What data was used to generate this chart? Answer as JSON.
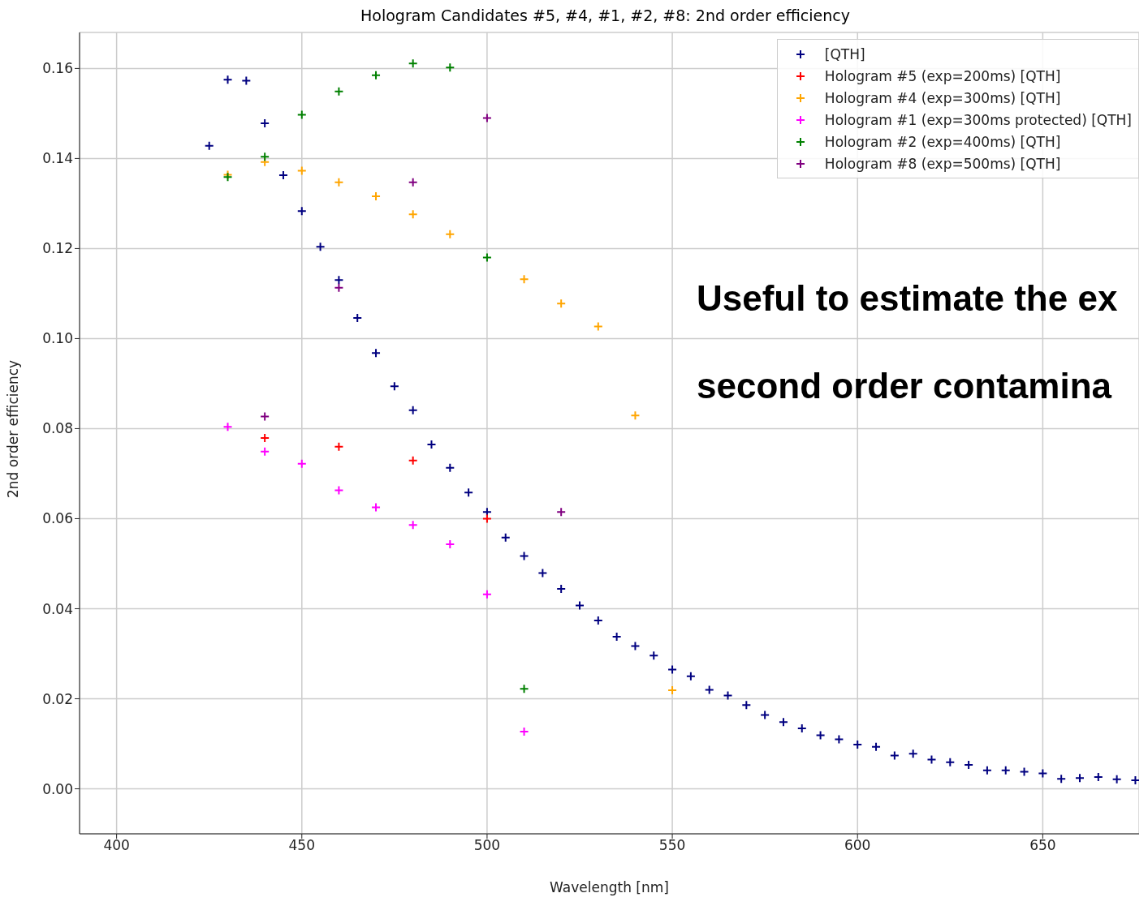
{
  "chart_data": {
    "type": "scatter",
    "title": "Hologram Candidates #5, #4, #1, #2, #8: 2nd order efficiency",
    "xlabel": "Wavelength [nm]",
    "ylabel": "2nd order efficiency",
    "xlim": [
      390,
      676
    ],
    "xticks": [
      400,
      450,
      500,
      550,
      600,
      650
    ],
    "ylim": [
      -0.01,
      0.168
    ],
    "yticks": [
      {
        "value": 0,
        "label": "0.00"
      },
      {
        "value": 0.02,
        "label": "0.02"
      },
      {
        "value": 0.04,
        "label": "0.04"
      },
      {
        "value": 0.06,
        "label": "0.06"
      },
      {
        "value": 0.08,
        "label": "0.08"
      },
      {
        "value": 0.1,
        "label": "0.10"
      },
      {
        "value": 0.12,
        "label": "0.12"
      },
      {
        "value": 0.14,
        "label": "0.14"
      },
      {
        "value": 0.16,
        "label": "0.16"
      }
    ],
    "grid": true,
    "legend": "top right",
    "marker": "cross",
    "annotations": [
      "Useful to estimate the ex",
      "second order contamina"
    ],
    "series": [
      {
        "name": "[QTH]",
        "color": "#000080",
        "x": [
          425,
          430,
          435,
          440,
          445,
          450,
          455,
          460,
          465,
          470,
          475,
          480,
          485,
          490,
          495,
          500,
          505,
          510,
          515,
          520,
          525,
          530,
          535,
          540,
          545,
          550,
          555,
          560,
          565,
          570,
          575,
          580,
          585,
          590,
          595,
          600,
          605,
          610,
          615,
          620,
          625,
          630,
          635,
          640,
          645,
          650,
          655,
          660,
          665,
          670,
          675
        ],
        "values": [
          0.1428,
          0.1575,
          0.1573,
          0.1478,
          0.1363,
          0.1283,
          0.1204,
          0.113,
          0.1046,
          0.0968,
          0.0894,
          0.0841,
          0.0765,
          0.0713,
          0.0658,
          0.0615,
          0.0558,
          0.0517,
          0.0479,
          0.0444,
          0.0407,
          0.0374,
          0.0338,
          0.0317,
          0.0296,
          0.0265,
          0.025,
          0.022,
          0.0207,
          0.0186,
          0.0164,
          0.0148,
          0.0134,
          0.0119,
          0.011,
          0.0098,
          0.0093,
          0.0074,
          0.0078,
          0.0065,
          0.0059,
          0.0053,
          0.0041,
          0.0041,
          0.0038,
          0.0034,
          0.0022,
          0.0024,
          0.0026,
          0.0021,
          0.0019
        ]
      },
      {
        "name": "Hologram #5 (exp=200ms) [QTH]",
        "color": "#ff0000",
        "x": [
          440,
          460,
          480,
          500
        ],
        "values": [
          0.0779,
          0.076,
          0.0729,
          0.06
        ]
      },
      {
        "name": "Hologram #4 (exp=300ms) [QTH]",
        "color": "#ffa500",
        "x": [
          430,
          440,
          450,
          460,
          470,
          480,
          490,
          510,
          520,
          530,
          540,
          550
        ],
        "values": [
          0.1364,
          0.1392,
          0.1373,
          0.1347,
          0.1316,
          0.1276,
          0.1232,
          0.1132,
          0.1078,
          0.1027,
          0.0829,
          0.0219
        ]
      },
      {
        "name": "Hologram #1 (exp=300ms protected) [QTH]",
        "color": "#ff00ff",
        "x": [
          430,
          440,
          450,
          460,
          470,
          480,
          490,
          500,
          510
        ],
        "values": [
          0.0804,
          0.0749,
          0.0722,
          0.0663,
          0.0625,
          0.0586,
          0.0543,
          0.0432,
          0.0127
        ]
      },
      {
        "name": "Hologram #2 (exp=400ms) [QTH]",
        "color": "#008000",
        "x": [
          430,
          440,
          450,
          460,
          470,
          480,
          490,
          500,
          510
        ],
        "values": [
          0.1359,
          0.1404,
          0.1497,
          0.1549,
          0.1585,
          0.1611,
          0.1602,
          0.118,
          0.0222
        ]
      },
      {
        "name": "Hologram #8 (exp=500ms) [QTH]",
        "color": "#800080",
        "x": [
          440,
          460,
          480,
          500,
          520
        ],
        "values": [
          0.0827,
          0.1113,
          0.1347,
          0.149,
          0.0615
        ]
      }
    ]
  }
}
